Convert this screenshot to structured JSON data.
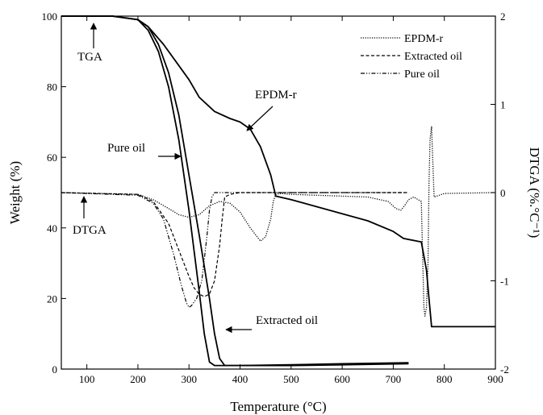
{
  "chart_data": {
    "type": "line",
    "xlabel": "Temperature (°C)",
    "ylabel_left": "Weight (%)",
    "ylabel_right": "DTGA (%.°C⁻¹)",
    "xlim": [
      50,
      900
    ],
    "ylim_left": [
      0,
      100
    ],
    "ylim_right": [
      -2,
      2
    ],
    "x_ticks": [
      100,
      200,
      300,
      400,
      500,
      600,
      700,
      800,
      900
    ],
    "y_ticks_left": [
      0,
      20,
      40,
      60,
      80,
      100
    ],
    "y_ticks_right": [
      -2,
      -1,
      0,
      1,
      2
    ],
    "grid": false,
    "legend_position": "top-right",
    "legend": [
      {
        "label": "EPDM-r",
        "style": "dotted"
      },
      {
        "label": "Extracted oil",
        "style": "dashed"
      },
      {
        "label": "Pure oil",
        "style": "dash-dot-dot"
      }
    ],
    "annotations": [
      {
        "text": "TGA",
        "x": 110,
        "y": 100
      },
      {
        "text": "DTGA",
        "x": 110,
        "y": 50
      },
      {
        "text": "Pure oil",
        "x": 305,
        "y": 62
      },
      {
        "text": "EPDM-r",
        "x": 420,
        "y": 71
      },
      {
        "text": "Extracted oil",
        "x": 345,
        "y": 11
      }
    ],
    "series": [
      {
        "name": "EPDM-r",
        "kind": "TGA",
        "axis": "left",
        "style": "solid",
        "x": [
          50,
          150,
          200,
          220,
          250,
          280,
          300,
          320,
          350,
          380,
          400,
          420,
          440,
          460,
          470,
          500,
          550,
          600,
          650,
          700,
          720,
          755,
          760,
          765,
          770,
          775,
          800,
          850,
          900
        ],
        "y": [
          100,
          100,
          99,
          97,
          92,
          86,
          82,
          77,
          73,
          71,
          70,
          68,
          63,
          55,
          49,
          48,
          46,
          44,
          42,
          39,
          37,
          36,
          32,
          28,
          20,
          12,
          12,
          12,
          12
        ]
      },
      {
        "name": "Extracted oil",
        "kind": "TGA",
        "axis": "left",
        "style": "solid",
        "x": [
          50,
          150,
          200,
          220,
          240,
          260,
          280,
          300,
          320,
          340,
          350,
          360,
          370,
          400,
          500,
          600,
          730
        ],
        "y": [
          100,
          100,
          99,
          97,
          92,
          84,
          72,
          55,
          38,
          20,
          10,
          3,
          1,
          1,
          1,
          1.2,
          1.5
        ]
      },
      {
        "name": "Pure oil",
        "kind": "TGA",
        "axis": "left",
        "style": "solid",
        "x": [
          50,
          150,
          200,
          220,
          240,
          260,
          280,
          300,
          320,
          330,
          340,
          350,
          400,
          500,
          600,
          730
        ],
        "y": [
          100,
          100,
          99,
          96,
          90,
          80,
          65,
          45,
          22,
          10,
          2,
          1,
          1,
          1.2,
          1.5,
          1.8
        ]
      },
      {
        "name": "EPDM-r",
        "kind": "DTGA",
        "axis": "right",
        "style": "dotted",
        "x": [
          50,
          200,
          230,
          260,
          280,
          300,
          320,
          340,
          360,
          380,
          400,
          420,
          440,
          450,
          460,
          465,
          470,
          480,
          500,
          600,
          650,
          690,
          705,
          715,
          722,
          730,
          740,
          755,
          757,
          760,
          762,
          765,
          768,
          770,
          772,
          775,
          780,
          800,
          900
        ],
        "y": [
          0,
          -0.02,
          -0.08,
          -0.18,
          -0.25,
          -0.28,
          -0.25,
          -0.15,
          -0.1,
          -0.12,
          -0.22,
          -0.4,
          -0.55,
          -0.5,
          -0.3,
          -0.1,
          -0.02,
          -0.01,
          -0.02,
          -0.04,
          -0.05,
          -0.1,
          -0.18,
          -0.2,
          -0.15,
          -0.08,
          -0.05,
          -0.1,
          -0.6,
          -1.3,
          -1.4,
          -1.3,
          -0.8,
          0.1,
          0.6,
          0.75,
          -0.05,
          -0.01,
          0
        ]
      },
      {
        "name": "Extracted oil",
        "kind": "DTGA",
        "axis": "right",
        "style": "dashed",
        "x": [
          50,
          200,
          230,
          260,
          280,
          300,
          310,
          320,
          330,
          340,
          350,
          360,
          365,
          370,
          380,
          400,
          500,
          600,
          730
        ],
        "y": [
          0,
          -0.02,
          -0.1,
          -0.35,
          -0.65,
          -0.95,
          -1.08,
          -1.15,
          -1.18,
          -1.15,
          -1.0,
          -0.6,
          -0.3,
          -0.05,
          -0.02,
          0,
          0,
          0,
          0
        ]
      },
      {
        "name": "Pure oil",
        "kind": "DTGA",
        "axis": "right",
        "style": "dash-dot-dot",
        "x": [
          50,
          200,
          230,
          250,
          270,
          285,
          295,
          300,
          305,
          315,
          325,
          335,
          340,
          345,
          350,
          400,
          500,
          600,
          730
        ],
        "y": [
          0,
          -0.03,
          -0.12,
          -0.3,
          -0.7,
          -1.05,
          -1.25,
          -1.3,
          -1.28,
          -1.2,
          -1.0,
          -0.5,
          -0.2,
          -0.05,
          0,
          0,
          0,
          0,
          0
        ]
      }
    ]
  }
}
